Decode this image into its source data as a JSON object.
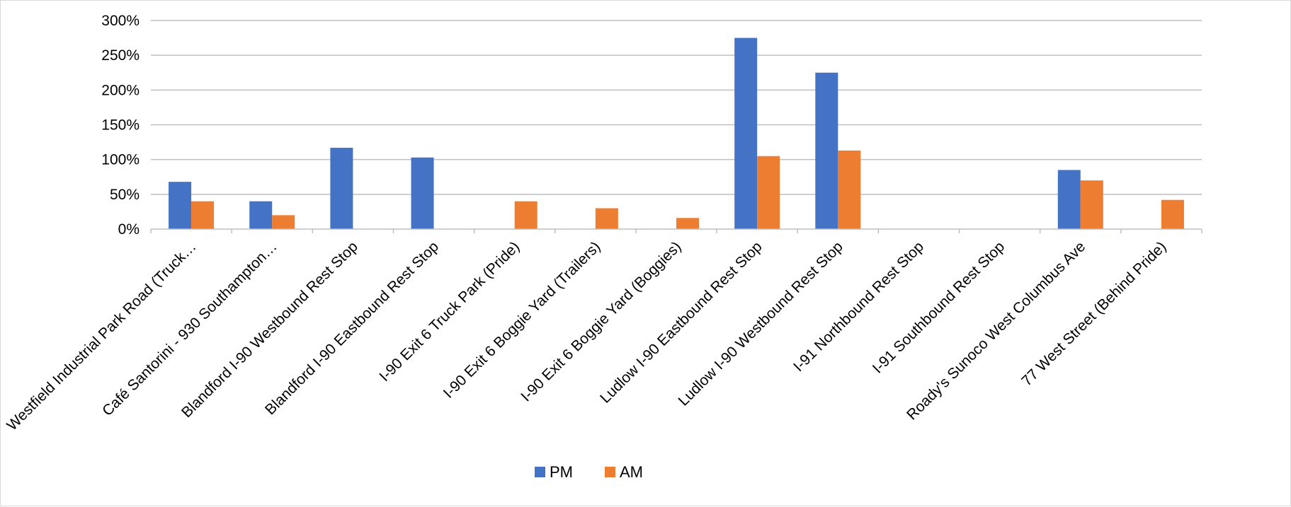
{
  "chart_data": {
    "type": "bar",
    "title": "",
    "xlabel": "",
    "ylabel": "",
    "ylim": [
      0,
      3
    ],
    "yticks": [
      0,
      0.5,
      1,
      1.5,
      2,
      2.5,
      3
    ],
    "ytick_labels": [
      "0%",
      "50%",
      "100%",
      "150%",
      "200%",
      "250%",
      "300%"
    ],
    "grid": true,
    "legend_position": "bottom",
    "categories": [
      "Westfield Industrial Park Road (Truck…",
      "Café Santorini - 930 Southampton…",
      "Blandford I-90 Westbound Rest Stop",
      "Blandford I-90 Eastbound Rest Stop",
      "I-90 Exit 6 Truck Park (Pride)",
      "I-90 Exit 6 Boggie Yard (Trailers)",
      "I-90 Exit 6 Boggie Yard (Boggies)",
      "Ludlow I-90 Eastbound Rest Stop",
      "Ludlow I-90 Westbound Rest Stop",
      "I-91 Northbound Rest Stop",
      "I-91 Southbound Rest Stop",
      "Roady's Sunoco West Columbus Ave",
      "77 West Street (Behind Pride)"
    ],
    "series": [
      {
        "name": "PM",
        "color": "#4472c4",
        "values": [
          0.68,
          0.4,
          1.17,
          1.03,
          0,
          0,
          0,
          2.75,
          2.25,
          0,
          0,
          0.85,
          0
        ]
      },
      {
        "name": "AM",
        "color": "#ed7d31",
        "values": [
          0.4,
          0.2,
          0,
          0,
          0.4,
          0.3,
          0.16,
          1.05,
          1.13,
          0,
          0,
          0.7,
          0.42
        ]
      }
    ]
  }
}
